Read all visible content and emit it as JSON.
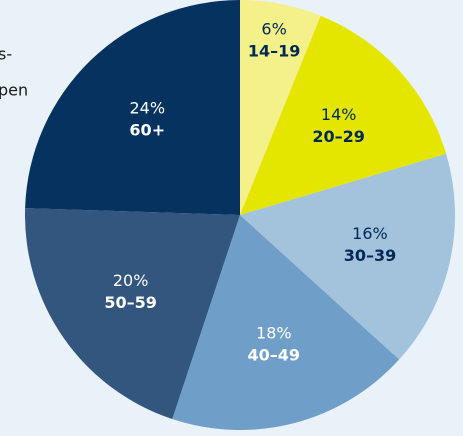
{
  "chart_data": {
    "type": "pie",
    "title_lines": [
      "s-",
      "pen"
    ],
    "categories": [
      "14–19",
      "20–29",
      "30–39",
      "40–49",
      "50–59",
      "60+"
    ],
    "values": [
      6,
      14,
      16,
      18,
      20,
      24
    ],
    "value_labels": [
      "6%",
      "14%",
      "16%",
      "18%",
      "20%",
      "24%"
    ],
    "colors": [
      "#f4f08a",
      "#e5e600",
      "#a3c2dc",
      "#6f9fc8",
      "#33567e",
      "#06325f"
    ],
    "label_colors": [
      "#002a55",
      "#002a55",
      "#002a55",
      "#ffffff",
      "#ffffff",
      "#ffffff"
    ]
  }
}
